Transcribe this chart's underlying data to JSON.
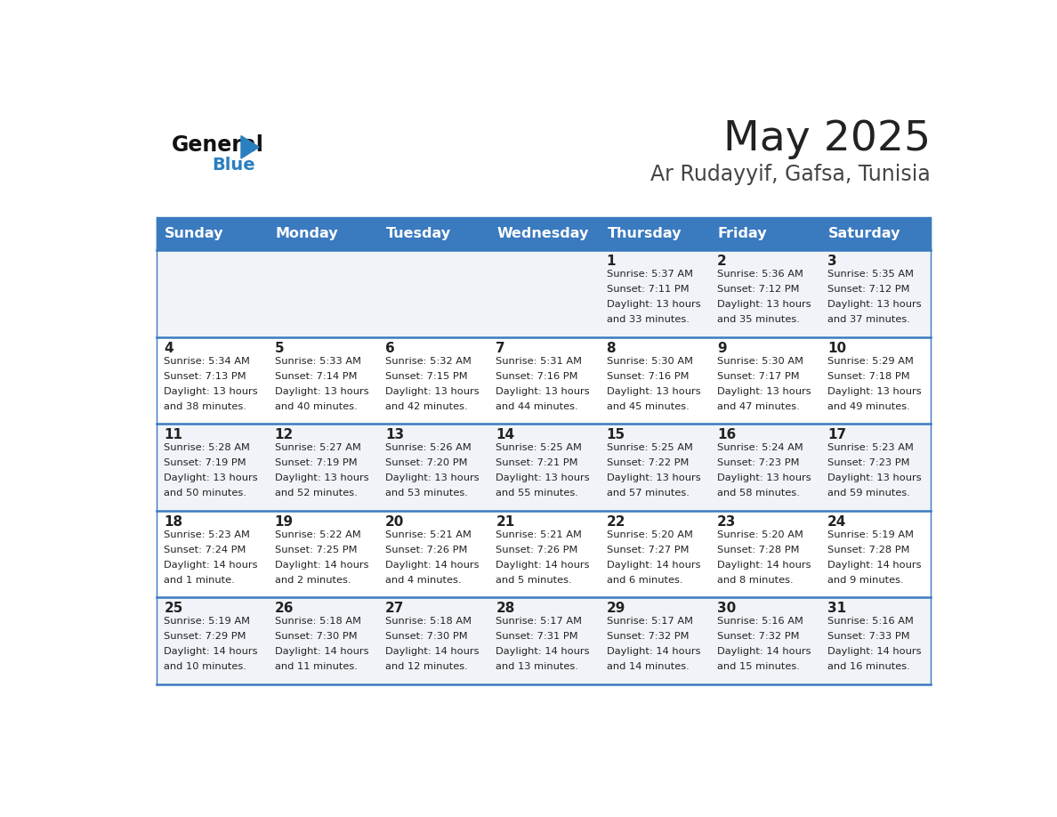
{
  "title": "May 2025",
  "subtitle": "Ar Rudayyif, Gafsa, Tunisia",
  "days_of_week": [
    "Sunday",
    "Monday",
    "Tuesday",
    "Wednesday",
    "Thursday",
    "Friday",
    "Saturday"
  ],
  "header_bg": "#3a7abf",
  "header_text": "#ffffff",
  "cell_bg_light": "#f0f4f8",
  "cell_bg_white": "#ffffff",
  "divider_color": "#3a7abf",
  "text_color": "#222222",
  "title_color": "#222222",
  "subtitle_color": "#444444",
  "logo_general_color": "#111111",
  "logo_blue_color": "#2a7fc0",
  "calendar": [
    [
      null,
      null,
      null,
      null,
      {
        "day": 1,
        "sunrise": "5:37 AM",
        "sunset": "7:11 PM",
        "daylight_h": "13 hours",
        "daylight_m": "and 33 minutes."
      },
      {
        "day": 2,
        "sunrise": "5:36 AM",
        "sunset": "7:12 PM",
        "daylight_h": "13 hours",
        "daylight_m": "and 35 minutes."
      },
      {
        "day": 3,
        "sunrise": "5:35 AM",
        "sunset": "7:12 PM",
        "daylight_h": "13 hours",
        "daylight_m": "and 37 minutes."
      }
    ],
    [
      {
        "day": 4,
        "sunrise": "5:34 AM",
        "sunset": "7:13 PM",
        "daylight_h": "13 hours",
        "daylight_m": "and 38 minutes."
      },
      {
        "day": 5,
        "sunrise": "5:33 AM",
        "sunset": "7:14 PM",
        "daylight_h": "13 hours",
        "daylight_m": "and 40 minutes."
      },
      {
        "day": 6,
        "sunrise": "5:32 AM",
        "sunset": "7:15 PM",
        "daylight_h": "13 hours",
        "daylight_m": "and 42 minutes."
      },
      {
        "day": 7,
        "sunrise": "5:31 AM",
        "sunset": "7:16 PM",
        "daylight_h": "13 hours",
        "daylight_m": "and 44 minutes."
      },
      {
        "day": 8,
        "sunrise": "5:30 AM",
        "sunset": "7:16 PM",
        "daylight_h": "13 hours",
        "daylight_m": "and 45 minutes."
      },
      {
        "day": 9,
        "sunrise": "5:30 AM",
        "sunset": "7:17 PM",
        "daylight_h": "13 hours",
        "daylight_m": "and 47 minutes."
      },
      {
        "day": 10,
        "sunrise": "5:29 AM",
        "sunset": "7:18 PM",
        "daylight_h": "13 hours",
        "daylight_m": "and 49 minutes."
      }
    ],
    [
      {
        "day": 11,
        "sunrise": "5:28 AM",
        "sunset": "7:19 PM",
        "daylight_h": "13 hours",
        "daylight_m": "and 50 minutes."
      },
      {
        "day": 12,
        "sunrise": "5:27 AM",
        "sunset": "7:19 PM",
        "daylight_h": "13 hours",
        "daylight_m": "and 52 minutes."
      },
      {
        "day": 13,
        "sunrise": "5:26 AM",
        "sunset": "7:20 PM",
        "daylight_h": "13 hours",
        "daylight_m": "and 53 minutes."
      },
      {
        "day": 14,
        "sunrise": "5:25 AM",
        "sunset": "7:21 PM",
        "daylight_h": "13 hours",
        "daylight_m": "and 55 minutes."
      },
      {
        "day": 15,
        "sunrise": "5:25 AM",
        "sunset": "7:22 PM",
        "daylight_h": "13 hours",
        "daylight_m": "and 57 minutes."
      },
      {
        "day": 16,
        "sunrise": "5:24 AM",
        "sunset": "7:23 PM",
        "daylight_h": "13 hours",
        "daylight_m": "and 58 minutes."
      },
      {
        "day": 17,
        "sunrise": "5:23 AM",
        "sunset": "7:23 PM",
        "daylight_h": "13 hours",
        "daylight_m": "and 59 minutes."
      }
    ],
    [
      {
        "day": 18,
        "sunrise": "5:23 AM",
        "sunset": "7:24 PM",
        "daylight_h": "14 hours",
        "daylight_m": "and 1 minute."
      },
      {
        "day": 19,
        "sunrise": "5:22 AM",
        "sunset": "7:25 PM",
        "daylight_h": "14 hours",
        "daylight_m": "and 2 minutes."
      },
      {
        "day": 20,
        "sunrise": "5:21 AM",
        "sunset": "7:26 PM",
        "daylight_h": "14 hours",
        "daylight_m": "and 4 minutes."
      },
      {
        "day": 21,
        "sunrise": "5:21 AM",
        "sunset": "7:26 PM",
        "daylight_h": "14 hours",
        "daylight_m": "and 5 minutes."
      },
      {
        "day": 22,
        "sunrise": "5:20 AM",
        "sunset": "7:27 PM",
        "daylight_h": "14 hours",
        "daylight_m": "and 6 minutes."
      },
      {
        "day": 23,
        "sunrise": "5:20 AM",
        "sunset": "7:28 PM",
        "daylight_h": "14 hours",
        "daylight_m": "and 8 minutes."
      },
      {
        "day": 24,
        "sunrise": "5:19 AM",
        "sunset": "7:28 PM",
        "daylight_h": "14 hours",
        "daylight_m": "and 9 minutes."
      }
    ],
    [
      {
        "day": 25,
        "sunrise": "5:19 AM",
        "sunset": "7:29 PM",
        "daylight_h": "14 hours",
        "daylight_m": "and 10 minutes."
      },
      {
        "day": 26,
        "sunrise": "5:18 AM",
        "sunset": "7:30 PM",
        "daylight_h": "14 hours",
        "daylight_m": "and 11 minutes."
      },
      {
        "day": 27,
        "sunrise": "5:18 AM",
        "sunset": "7:30 PM",
        "daylight_h": "14 hours",
        "daylight_m": "and 12 minutes."
      },
      {
        "day": 28,
        "sunrise": "5:17 AM",
        "sunset": "7:31 PM",
        "daylight_h": "14 hours",
        "daylight_m": "and 13 minutes."
      },
      {
        "day": 29,
        "sunrise": "5:17 AM",
        "sunset": "7:32 PM",
        "daylight_h": "14 hours",
        "daylight_m": "and 14 minutes."
      },
      {
        "day": 30,
        "sunrise": "5:16 AM",
        "sunset": "7:32 PM",
        "daylight_h": "14 hours",
        "daylight_m": "and 15 minutes."
      },
      {
        "day": 31,
        "sunrise": "5:16 AM",
        "sunset": "7:33 PM",
        "daylight_h": "14 hours",
        "daylight_m": "and 16 minutes."
      }
    ]
  ]
}
